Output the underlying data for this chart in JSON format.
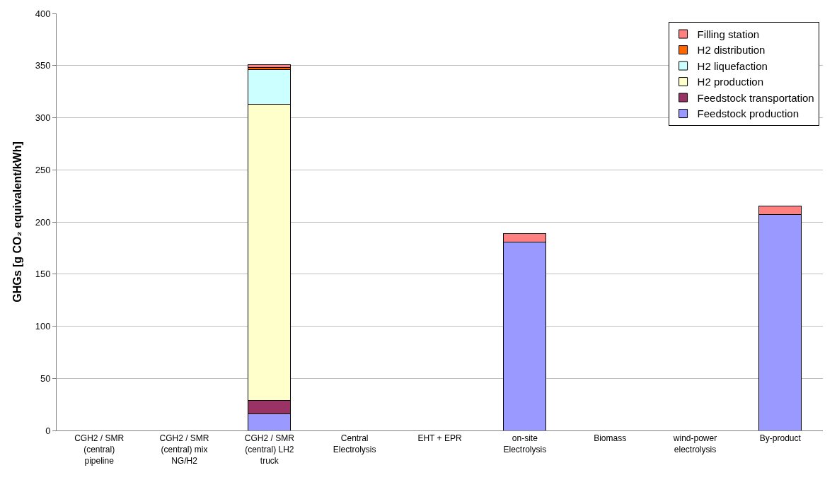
{
  "chart_data": {
    "type": "bar",
    "stacked": true,
    "ylabel": "GHGs [g CO₂ equivalent/kWh]",
    "categories": [
      "CGH2 / SMR (central) pipeline",
      "CGH2 / SMR (central) mix NG/H2",
      "CGH2 / SMR (central) LH2 truck",
      "Central Electrolysis",
      "EHT + EPR",
      "on-site Electrolysis",
      "Biomass",
      "wind-power electrolysis",
      "By-product"
    ],
    "series": [
      {
        "name": "Feedstock production",
        "color": "#9999ff",
        "values": [
          null,
          null,
          16,
          null,
          null,
          180.5,
          null,
          null,
          207
        ]
      },
      {
        "name": "Feedstock transportation",
        "color": "#993366",
        "values": [
          null,
          null,
          13,
          null,
          null,
          null,
          null,
          null,
          null
        ]
      },
      {
        "name": "H2 production",
        "color": "#ffffcc",
        "values": [
          null,
          null,
          284,
          null,
          null,
          null,
          null,
          null,
          null
        ]
      },
      {
        "name": "H2 liquefaction",
        "color": "#ccffff",
        "values": [
          null,
          null,
          33,
          null,
          null,
          null,
          null,
          null,
          null
        ]
      },
      {
        "name": "H2 distribution",
        "color": "#ff6600",
        "values": [
          null,
          null,
          2,
          null,
          null,
          null,
          null,
          null,
          null
        ]
      },
      {
        "name": "Filling station",
        "color": "#ff8080",
        "values": [
          null,
          null,
          3,
          null,
          null,
          8,
          null,
          null,
          8
        ]
      }
    ],
    "ylim": [
      0,
      400
    ],
    "yticks": [
      0,
      50,
      100,
      150,
      200,
      250,
      300,
      350,
      400
    ],
    "grid": "y",
    "legend": "top right"
  }
}
